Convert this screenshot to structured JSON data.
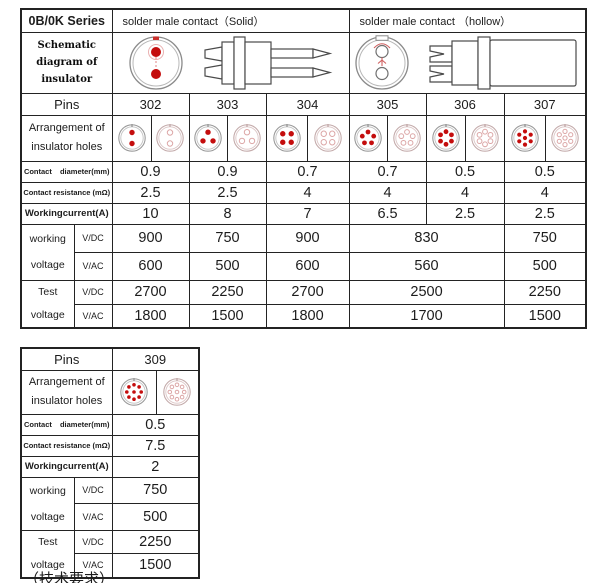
{
  "header": {
    "series": "0B/0K Series",
    "solid_label": "solder male contact（Solid）",
    "hollow_label": "solder male contact （hollow）"
  },
  "row_labels": {
    "schematic": "Schematic\ndiagram of\ninsulator",
    "pins": "Pins",
    "arrangement": "Arrangement of\ninsulator holes",
    "diameter": "Contact diameter(mm)",
    "resistance": "Contact resistance (mΩ)",
    "current": "Workingcurrent(A)",
    "working_voltage": "working\nvoltage",
    "test_voltage": "Test\nvoltage",
    "vdc": "V/DC",
    "vac": "V/AC"
  },
  "main_table": {
    "pins": [
      "302",
      "303",
      "304",
      "305",
      "306",
      "307"
    ],
    "holes": [
      2,
      3,
      4,
      5,
      6,
      7
    ],
    "diameter": [
      "0.9",
      "0.9",
      "0.7",
      "0.7",
      "0.5",
      "0.5"
    ],
    "resistance": [
      "2.5",
      "2.5",
      "4",
      "4",
      "4",
      "4"
    ],
    "current": [
      "10",
      "8",
      "7",
      "6.5",
      "2.5",
      "2.5"
    ],
    "working_vdc": [
      "900",
      "750",
      "900",
      "830",
      "750"
    ],
    "working_vac": [
      "600",
      "500",
      "600",
      "560",
      "500"
    ],
    "test_vdc": [
      "2700",
      "2250",
      "2700",
      "2500",
      "2250"
    ],
    "test_vac": [
      "1800",
      "1500",
      "1800",
      "1700",
      "1500"
    ]
  },
  "table2": {
    "pin": "309",
    "holes": 9,
    "diameter": "0.5",
    "resistance": "7.5",
    "current": "2",
    "working_vdc": "750",
    "working_vac": "500",
    "test_vdc": "2250",
    "test_vac": "1500"
  },
  "footer": {
    "cutoff_text": "（技术要求）"
  },
  "colors": {
    "dot_red": "#c40d0d",
    "hollow_pink": "#dca6a6",
    "border": "#232323"
  }
}
